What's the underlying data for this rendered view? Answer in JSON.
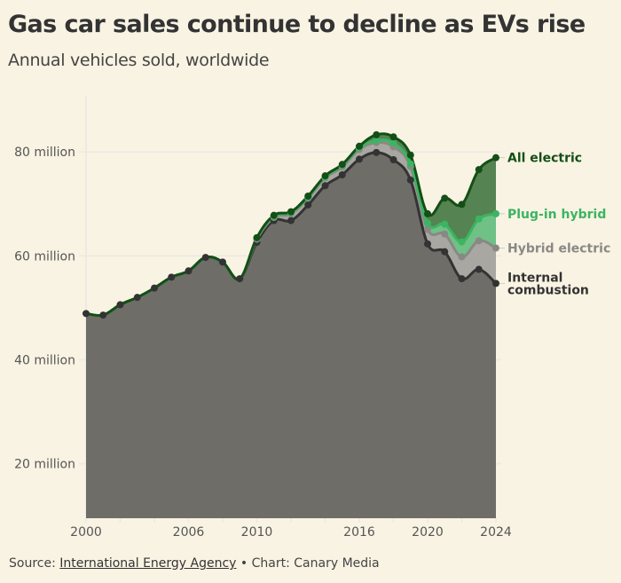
{
  "header": {
    "title": "Gas car sales continue to decline as EVs rise",
    "subtitle": "Annual vehicles sold, worldwide"
  },
  "footer": {
    "source_prefix": "Source:",
    "source_link": "International Energy Agency",
    "separator": "•",
    "credit": "Chart: Canary Media"
  },
  "chart_data": {
    "type": "area",
    "stacked": true,
    "title": "Gas car sales continue to decline as EVs rise",
    "subtitle": "Annual vehicles sold, worldwide",
    "xlabel": "",
    "ylabel": "",
    "units": "million vehicles",
    "x": [
      2000,
      2001,
      2002,
      2003,
      2004,
      2005,
      2006,
      2007,
      2008,
      2009,
      2010,
      2011,
      2012,
      2013,
      2014,
      2015,
      2016,
      2017,
      2018,
      2019,
      2020,
      2021,
      2022,
      2023,
      2024
    ],
    "xlim": [
      2000,
      2024
    ],
    "ylim": [
      9.5,
      90.8
    ],
    "x_ticks": [
      2000,
      2006,
      2010,
      2016,
      2020,
      2024
    ],
    "x_minor_tick_step": 2,
    "y_ticks": [
      {
        "value": 20,
        "label": "20 million"
      },
      {
        "value": 40,
        "label": "40 million"
      },
      {
        "value": 60,
        "label": "60 million"
      },
      {
        "value": 80,
        "label": "80 million"
      }
    ],
    "grid": true,
    "legend": "direct labels at right end",
    "series": [
      {
        "name": "Internal combustion",
        "label_lines": [
          "Internal",
          "combustion"
        ],
        "color": "#6f6d68",
        "line_color": "#333333",
        "label_color": "#333333",
        "values": [
          48.9,
          48.6,
          50.6,
          52.0,
          53.8,
          55.9,
          57.1,
          59.7,
          58.8,
          55.6,
          62.6,
          66.8,
          66.8,
          69.8,
          73.5,
          75.6,
          78.6,
          79.9,
          78.5,
          74.6,
          62.3,
          60.8,
          55.6,
          57.4,
          54.7
        ]
      },
      {
        "name": "Hybrid electric",
        "label_lines": [
          "Hybrid electric"
        ],
        "color": "#a9a7a2",
        "line_color": "#8a8885",
        "label_color": "#8a8885",
        "values": [
          0,
          0,
          0,
          0,
          0,
          0,
          0,
          0,
          0,
          0,
          0.6,
          0.6,
          1.3,
          1.3,
          1.5,
          1.5,
          1.9,
          1.9,
          2.5,
          2.6,
          2.8,
          3.4,
          4.2,
          5.5,
          6.8
        ]
      },
      {
        "name": "Plug-in hybrid",
        "label_lines": [
          "Plug-in hybrid"
        ],
        "color": "#6fc185",
        "line_color": "#3cb462",
        "label_color": "#3cb462",
        "values": [
          0,
          0,
          0,
          0,
          0,
          0,
          0,
          0,
          0,
          0,
          0.2,
          0.2,
          0.2,
          0.2,
          0.2,
          0.3,
          0.3,
          0.4,
          0.7,
          0.5,
          1.2,
          1.9,
          2.9,
          4.2,
          6.6
        ]
      },
      {
        "name": "All electric",
        "label_lines": [
          "All electric"
        ],
        "color": "#558352",
        "line_color": "#134f16",
        "label_color": "#134f16",
        "values": [
          0,
          0,
          0,
          0,
          0,
          0,
          0,
          0,
          0,
          0,
          0.1,
          0.2,
          0.2,
          0.2,
          0.2,
          0.2,
          0.3,
          1.1,
          1.2,
          1.7,
          1.8,
          5.0,
          7.2,
          9.5,
          10.8
        ]
      }
    ]
  }
}
